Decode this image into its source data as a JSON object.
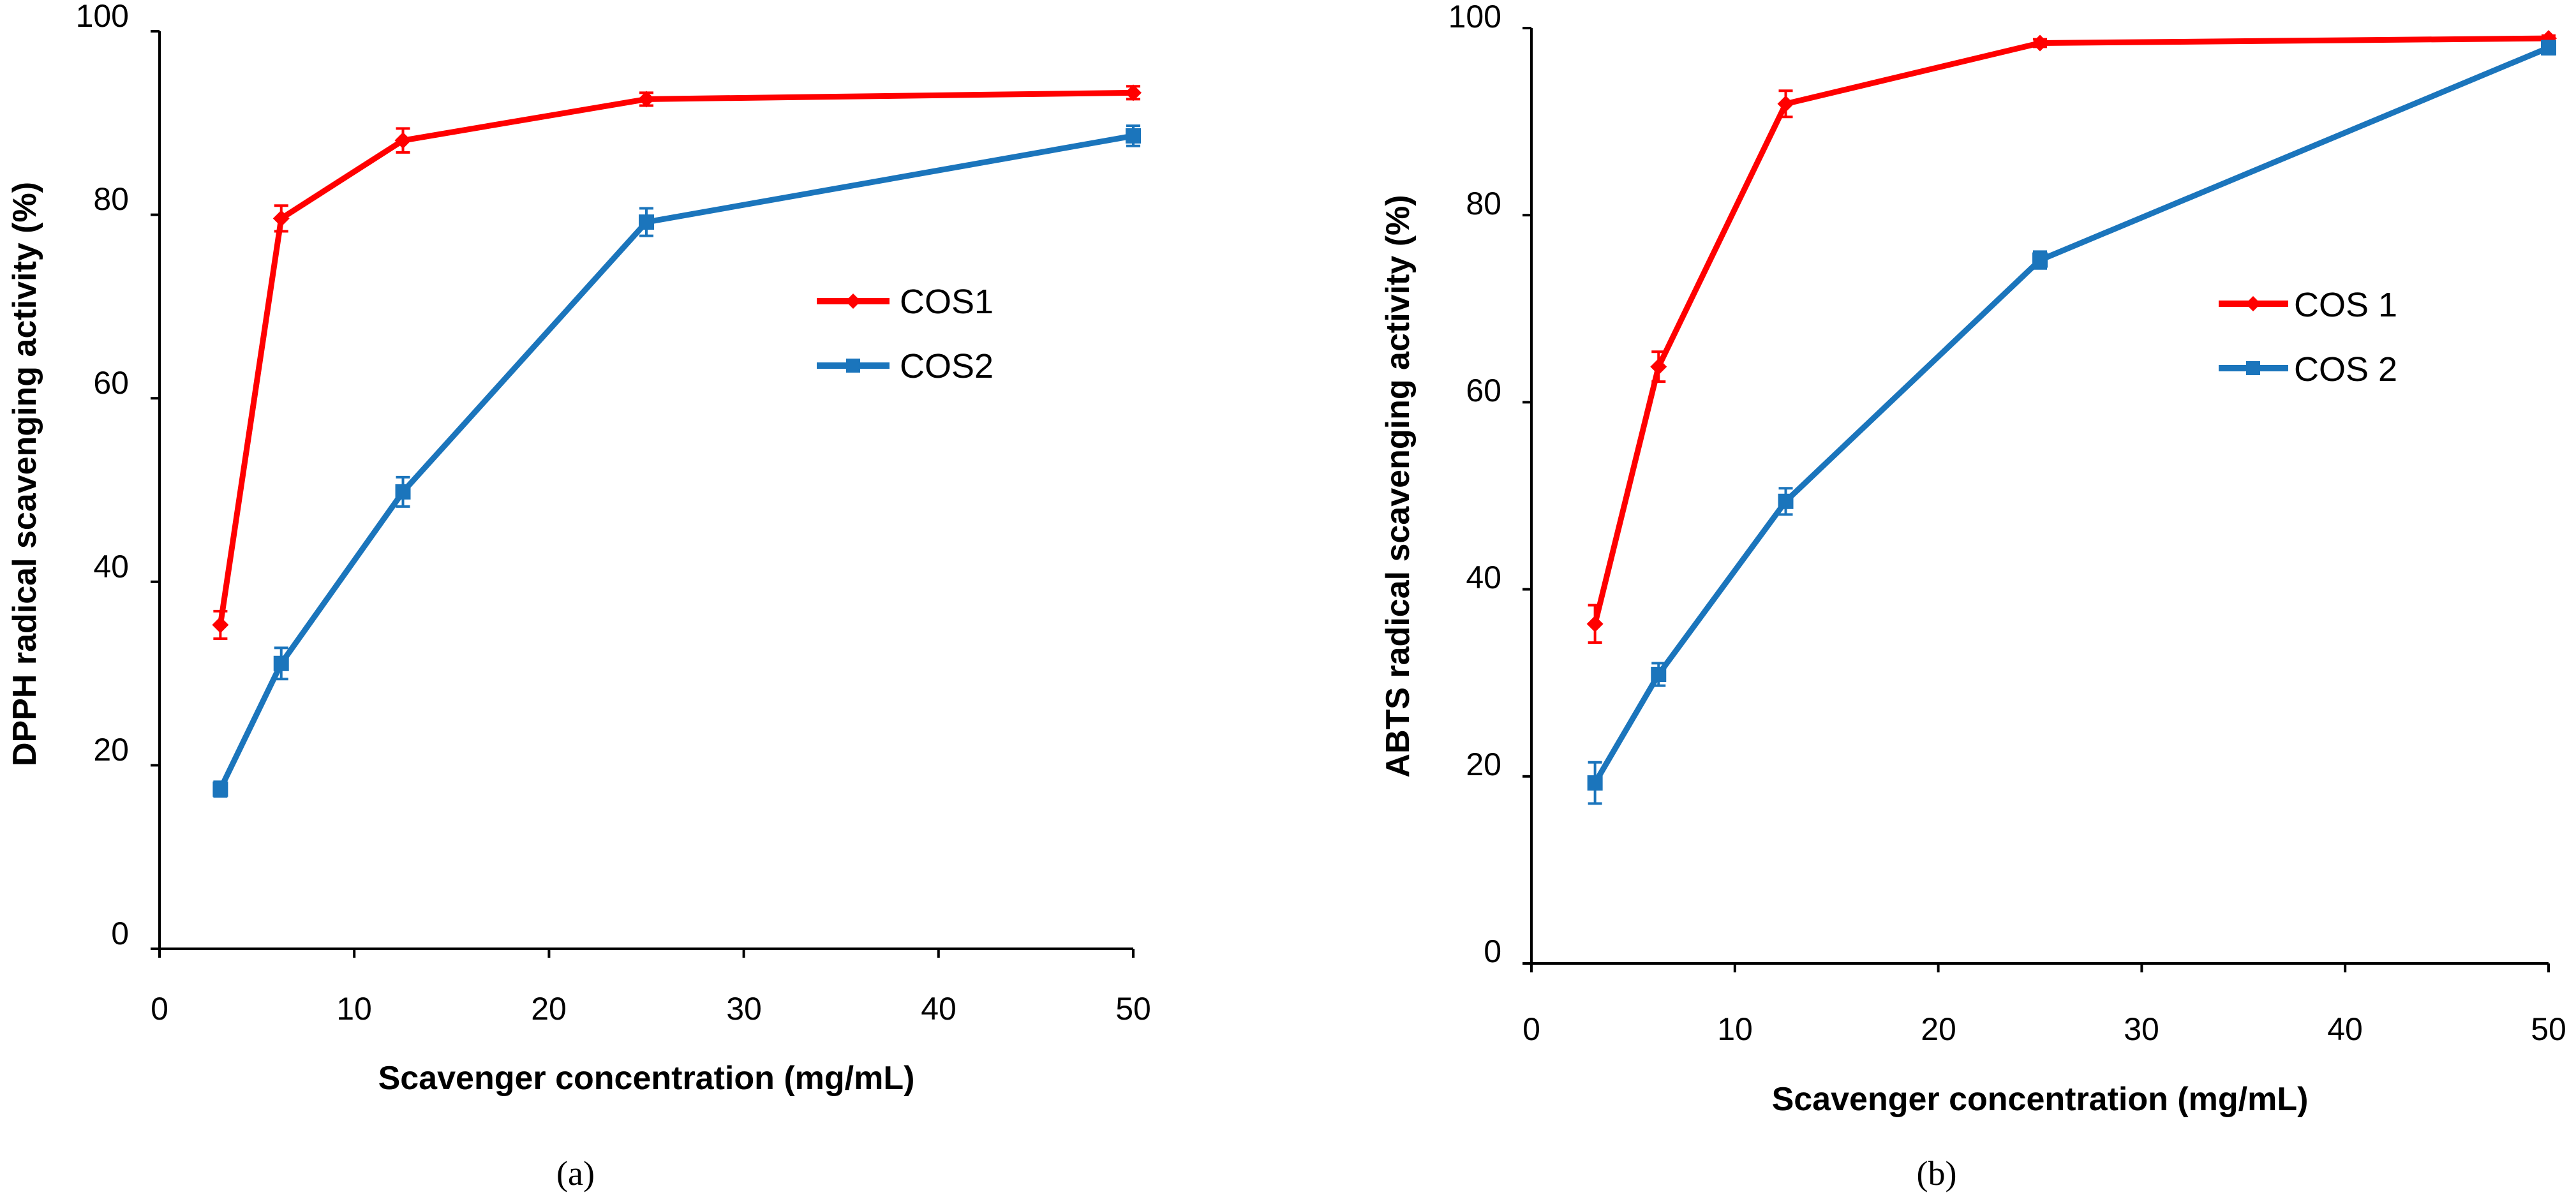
{
  "chart_data": [
    {
      "type": "line",
      "panel": "(a)",
      "xlabel": "Scavenger concentration (mg/mL)",
      "ylabel": "DPPH radical scavenging activity (%)",
      "xlim": [
        0,
        50
      ],
      "ylim": [
        0,
        100
      ],
      "xticks": [
        "0",
        "10",
        "20",
        "30",
        "40",
        "50"
      ],
      "yticks": [
        "0",
        "20",
        "40",
        "60",
        "80",
        "100"
      ],
      "grid": false,
      "legend_position": "center-right",
      "series": [
        {
          "name": "COS1",
          "color": "#ff0000",
          "marker": "diamond",
          "x": [
            3.125,
            6.25,
            12.5,
            25,
            50
          ],
          "y": [
            35.3,
            79.6,
            88.1,
            92.6,
            93.3
          ],
          "err": [
            1.5,
            1.4,
            1.3,
            0.7,
            0.7
          ]
        },
        {
          "name": "COS2",
          "color": "#1b75bc",
          "marker": "square",
          "x": [
            3.125,
            6.25,
            12.5,
            25,
            50
          ],
          "y": [
            17.4,
            31.1,
            49.8,
            79.2,
            88.6
          ],
          "err": [
            0.8,
            1.7,
            1.6,
            1.5,
            1.1
          ]
        }
      ]
    },
    {
      "type": "line",
      "panel": "(b)",
      "xlabel": "Scavenger concentration (mg/mL)",
      "ylabel": "ABTS radical scavenging activity (%)",
      "xlim": [
        0,
        50
      ],
      "ylim": [
        0,
        100
      ],
      "xticks": [
        "0",
        "10",
        "20",
        "30",
        "40",
        "50"
      ],
      "yticks": [
        "0",
        "20",
        "40",
        "60",
        "80",
        "100"
      ],
      "grid": false,
      "legend_position": "center-right",
      "series": [
        {
          "name": "COS 1",
          "color": "#ff0000",
          "marker": "diamond",
          "x": [
            3.125,
            6.25,
            12.5,
            25,
            50
          ],
          "y": [
            36.3,
            63.8,
            91.9,
            98.4,
            98.9
          ],
          "err": [
            2.0,
            1.6,
            1.4,
            0.4,
            0.3
          ]
        },
        {
          "name": "COS 2",
          "color": "#1b75bc",
          "marker": "square",
          "x": [
            3.125,
            6.25,
            12.5,
            25,
            50
          ],
          "y": [
            19.3,
            30.9,
            49.4,
            75.2,
            97.9
          ],
          "err": [
            2.2,
            1.2,
            1.4,
            0.9,
            0.7
          ]
        }
      ]
    }
  ]
}
